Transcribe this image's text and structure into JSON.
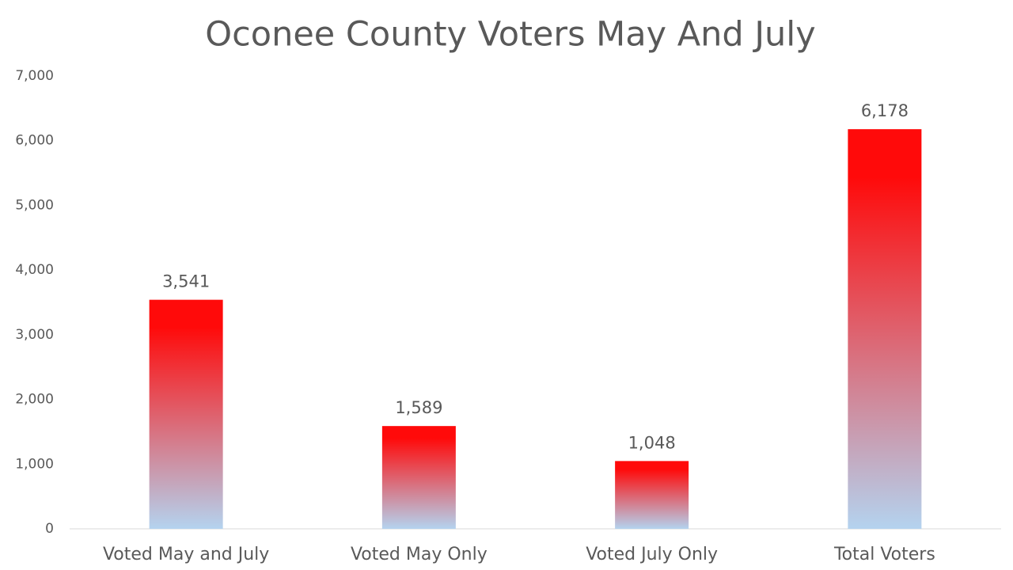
{
  "chart_data": {
    "type": "bar",
    "title": "Oconee County Voters May And July",
    "categories": [
      "Voted May and July",
      "Voted May Only",
      "Voted July Only",
      "Total Voters"
    ],
    "values": [
      3541,
      1589,
      1048,
      6178
    ],
    "value_labels": [
      "3,541",
      "1,589",
      "1,048",
      "6,178"
    ],
    "color_top": "#ff0a0a",
    "color_bottom": "#b4d3ef",
    "ylim": [
      0,
      7000
    ],
    "yticks": [
      0,
      {
        "value": 1000,
        "label": "1,000"
      },
      {
        "value": 2000,
        "label": "2,000"
      },
      {
        "value": 3000,
        "label": "3,000"
      },
      {
        "value": 4000,
        "label": "4,000"
      },
      {
        "value": 5000,
        "label": "5,000"
      },
      {
        "value": 6000,
        "label": "6,000"
      },
      {
        "value": 7000,
        "label": "7,000"
      }
    ],
    "grid": false
  }
}
